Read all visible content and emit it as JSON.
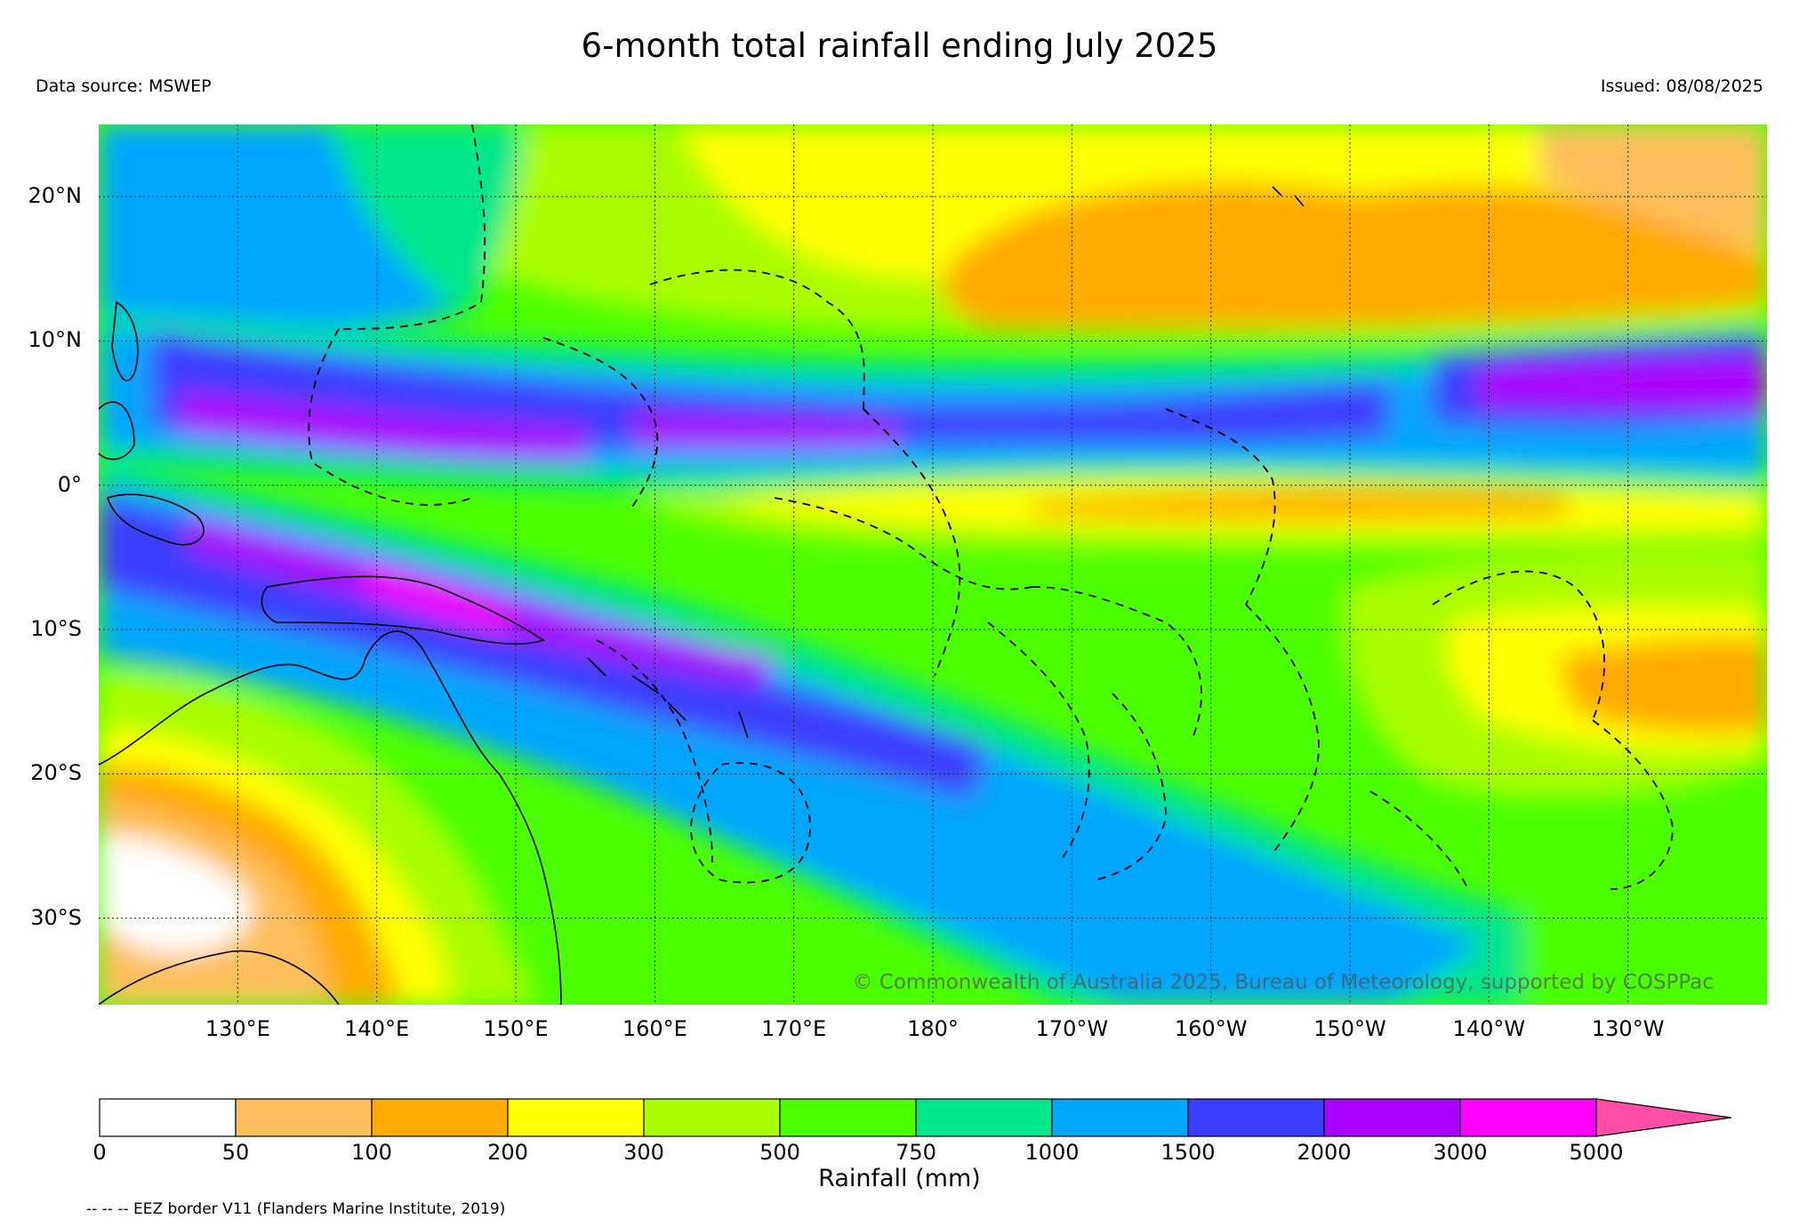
{
  "title": "6-month total rainfall ending July 2025",
  "data_source": "Data source: MSWEP",
  "issued": "Issued: 08/08/2025",
  "copyright": "© Commonwealth of Australia 2025, Bureau of Meteorology, supported by COSPPac",
  "eez_note": "-- -- -- EEZ border V11 (Flanders Marine Institute, 2019)",
  "map": {
    "lon_range": [
      120,
      240
    ],
    "lat_range": [
      -36,
      25
    ],
    "lat_labels": [
      {
        "lat": 20,
        "text": "20°N"
      },
      {
        "lat": 10,
        "text": "10°N"
      },
      {
        "lat": 0,
        "text": "0°"
      },
      {
        "lat": -10,
        "text": "10°S"
      },
      {
        "lat": -20,
        "text": "20°S"
      },
      {
        "lat": -30,
        "text": "30°S"
      }
    ],
    "lon_labels": [
      {
        "lon": 130,
        "text": "130°E"
      },
      {
        "lon": 140,
        "text": "140°E"
      },
      {
        "lon": 150,
        "text": "150°E"
      },
      {
        "lon": 160,
        "text": "160°E"
      },
      {
        "lon": 170,
        "text": "170°E"
      },
      {
        "lon": 180,
        "text": "180°"
      },
      {
        "lon": 190,
        "text": "170°W"
      },
      {
        "lon": 200,
        "text": "160°W"
      },
      {
        "lon": 210,
        "text": "150°W"
      },
      {
        "lon": 220,
        "text": "140°W"
      },
      {
        "lon": 230,
        "text": "130°W"
      }
    ],
    "grid": true
  },
  "colorbar": {
    "title": "Rainfall (mm)",
    "labels": [
      "0",
      "50",
      "100",
      "200",
      "300",
      "500",
      "750",
      "1000",
      "1500",
      "2000",
      "3000",
      "5000"
    ],
    "colors": [
      "#ffffff",
      "#ffbf5f",
      "#ffaa00",
      "#ffff00",
      "#aaff00",
      "#4cff00",
      "#00e68c",
      "#00a6ff",
      "#3d3dff",
      "#aa00ff",
      "#ff00ff"
    ],
    "extend_color": "#ff4da6"
  }
}
